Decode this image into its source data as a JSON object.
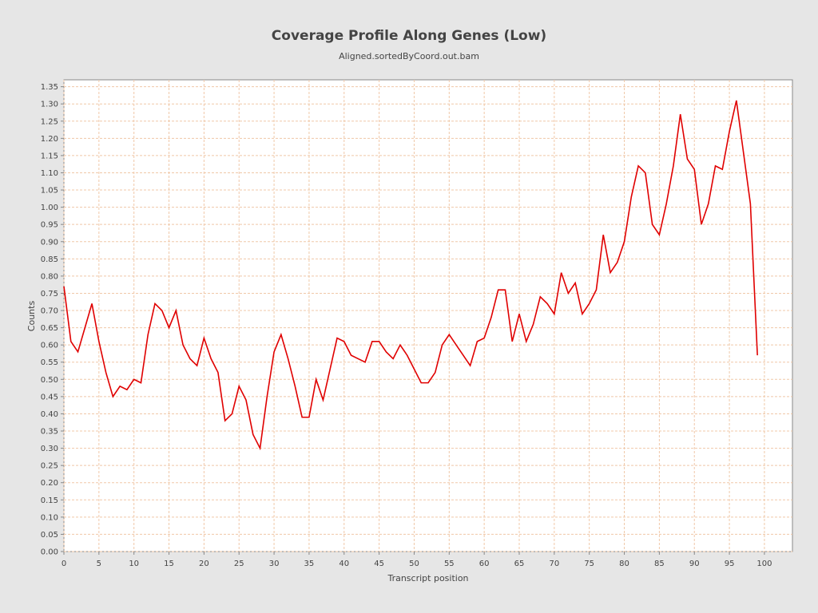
{
  "chart_data": {
    "type": "line",
    "title": "Coverage Profile Along Genes (Low)",
    "subtitle": "Aligned.sortedByCoord.out.bam",
    "xlabel": "Transcript position",
    "ylabel": "Counts",
    "xlim": [
      0,
      104
    ],
    "ylim": [
      0,
      1.37
    ],
    "x_ticks": [
      0,
      5,
      10,
      15,
      20,
      25,
      30,
      35,
      40,
      45,
      50,
      55,
      60,
      65,
      70,
      75,
      80,
      85,
      90,
      95,
      100
    ],
    "y_ticks": [
      "0.00",
      "0.05",
      "0.10",
      "0.15",
      "0.20",
      "0.25",
      "0.30",
      "0.35",
      "0.40",
      "0.45",
      "0.50",
      "0.55",
      "0.60",
      "0.65",
      "0.70",
      "0.75",
      "0.80",
      "0.85",
      "0.90",
      "0.95",
      "1.00",
      "1.05",
      "1.10",
      "1.15",
      "1.20",
      "1.25",
      "1.30",
      "1.35"
    ],
    "grid": true,
    "line_color": "#e00000",
    "grid_color": "#f0c8a8",
    "series": [
      {
        "x": [
          0,
          1,
          2,
          3,
          4,
          5,
          6,
          7,
          8,
          9,
          10,
          11,
          12,
          13,
          14,
          15,
          16,
          17,
          18,
          19,
          20,
          21,
          22,
          23,
          24,
          25,
          26,
          27,
          28,
          29,
          30,
          31,
          32,
          33,
          34,
          35,
          36,
          37,
          38,
          39,
          40,
          41,
          42,
          43,
          44,
          45,
          46,
          47,
          48,
          49,
          50,
          51,
          52,
          53,
          54,
          55,
          56,
          57,
          58,
          59,
          60,
          61,
          62,
          63,
          64,
          65,
          66,
          67,
          68,
          69,
          70,
          71,
          72,
          73,
          74,
          75,
          76,
          77,
          78,
          79,
          80,
          81,
          82,
          83,
          84,
          85,
          86,
          87,
          88,
          89,
          90,
          91,
          92,
          93,
          94,
          95,
          96,
          97,
          98,
          99
        ],
        "values": [
          0.77,
          0.61,
          0.58,
          0.65,
          0.72,
          0.61,
          0.52,
          0.45,
          0.48,
          0.47,
          0.5,
          0.49,
          0.63,
          0.72,
          0.7,
          0.65,
          0.7,
          0.6,
          0.56,
          0.54,
          0.62,
          0.56,
          0.52,
          0.38,
          0.4,
          0.48,
          0.44,
          0.34,
          0.3,
          0.45,
          0.58,
          0.63,
          0.56,
          0.48,
          0.39,
          0.39,
          0.5,
          0.44,
          0.53,
          0.62,
          0.61,
          0.57,
          0.56,
          0.55,
          0.61,
          0.61,
          0.58,
          0.56,
          0.6,
          0.57,
          0.53,
          0.49,
          0.49,
          0.52,
          0.6,
          0.63,
          0.6,
          0.57,
          0.54,
          0.61,
          0.62,
          0.68,
          0.76,
          0.76,
          0.61,
          0.69,
          0.61,
          0.66,
          0.74,
          0.72,
          0.69,
          0.81,
          0.75,
          0.78,
          0.69,
          0.72,
          0.76,
          0.92,
          0.81,
          0.84,
          0.9,
          1.03,
          1.12,
          1.1,
          0.95,
          0.92,
          1.01,
          1.12,
          1.27,
          1.14,
          1.11,
          0.95,
          1.01,
          1.12,
          1.11,
          1.22,
          1.31,
          1.16,
          1.01,
          0.57
        ]
      }
    ]
  }
}
